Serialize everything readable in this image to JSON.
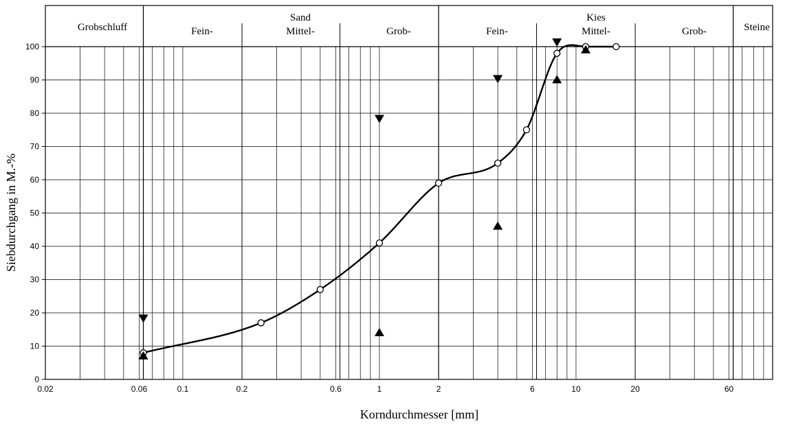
{
  "chart_data": {
    "type": "line",
    "title": "",
    "xlabel": "Korndurchmesser [mm]",
    "ylabel": "Siebdurchgang in M.-%",
    "x_scale": "log",
    "xlim": [
      0.02,
      100
    ],
    "ylim": [
      0,
      100
    ],
    "grid": true,
    "x_ticks": [
      "0.02",
      "0.06",
      "0.1",
      "0.2",
      "0.6",
      "1",
      "2",
      "6",
      "10",
      "20",
      "60"
    ],
    "y_ticks": [
      "0",
      "10",
      "20",
      "30",
      "40",
      "50",
      "60",
      "70",
      "80",
      "90",
      "100"
    ],
    "bands": [
      {
        "label": "Grobschluff"
      },
      {
        "label": "Fein-"
      },
      {
        "label": "Sand"
      },
      {
        "label": "Mittel-"
      },
      {
        "label": "Grob-"
      },
      {
        "label": "Fein-"
      },
      {
        "label": "Kies"
      },
      {
        "label": "Mittel-"
      },
      {
        "label": "Grob-"
      },
      {
        "label": "Steine"
      }
    ],
    "series": [
      {
        "marker": "circle",
        "x": [
          0.063,
          0.25,
          0.5,
          1,
          2,
          4,
          5.6,
          8,
          11.2,
          16
        ],
        "y": [
          8,
          17,
          27,
          41,
          59,
          65,
          75,
          98,
          100,
          100
        ]
      }
    ],
    "limit_markers": [
      {
        "x": 0.063,
        "y": 17,
        "direction": "down"
      },
      {
        "x": 0.063,
        "y": 6,
        "direction": "up"
      },
      {
        "x": 1,
        "y": 77,
        "direction": "down"
      },
      {
        "x": 1,
        "y": 13,
        "direction": "up"
      },
      {
        "x": 4,
        "y": 89,
        "direction": "down"
      },
      {
        "x": 4,
        "y": 45,
        "direction": "up"
      },
      {
        "x": 8,
        "y": 100,
        "direction": "down"
      },
      {
        "x": 8,
        "y": 89,
        "direction": "up"
      },
      {
        "x": 11.2,
        "y": 98,
        "direction": "up"
      }
    ],
    "colors": {
      "line": "#000000",
      "grid": "#000000",
      "marker_fill": "#ffffff"
    }
  }
}
